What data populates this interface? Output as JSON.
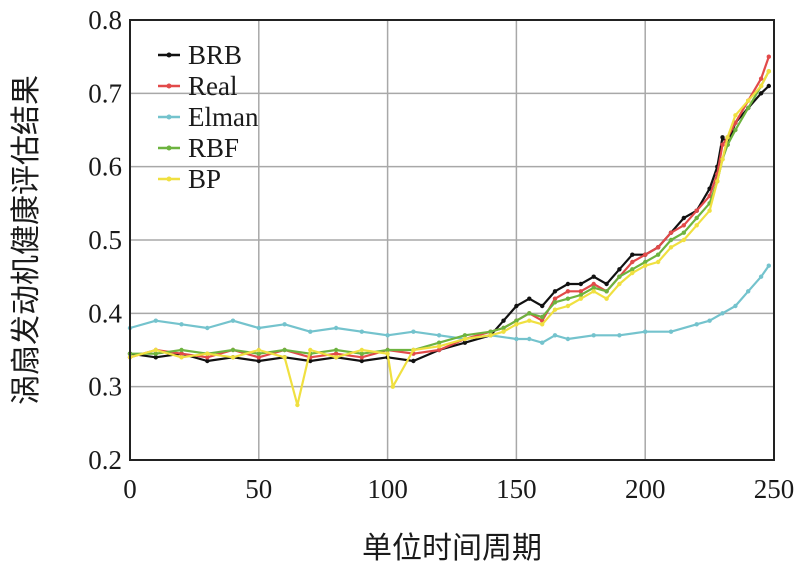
{
  "chart_data": {
    "type": "line",
    "xlabel": "单位时间周期",
    "ylabel": "涡扇发动机健康评估结果",
    "xlim": [
      0,
      250
    ],
    "ylim": [
      0.2,
      0.8
    ],
    "xticks": [
      0,
      50,
      100,
      150,
      200,
      250
    ],
    "yticks": [
      0.2,
      0.3,
      0.4,
      0.5,
      0.6,
      0.7,
      0.8
    ],
    "xtick_labels": [
      "0",
      "50",
      "100",
      "150",
      "200",
      "250"
    ],
    "ytick_labels": [
      "0.2",
      "0.3",
      "0.4",
      "0.5",
      "0.6",
      "0.7",
      "0.8"
    ],
    "grid": true,
    "legend_position": "top-left",
    "series": [
      {
        "name": "BRB",
        "color": "#111111",
        "x": [
          0,
          10,
          20,
          30,
          40,
          50,
          60,
          70,
          80,
          90,
          100,
          110,
          120,
          130,
          140,
          145,
          150,
          155,
          160,
          165,
          170,
          175,
          180,
          185,
          190,
          195,
          200,
          205,
          210,
          215,
          220,
          225,
          228,
          230,
          232,
          235,
          240,
          245,
          248
        ],
        "y": [
          0.345,
          0.34,
          0.345,
          0.335,
          0.34,
          0.335,
          0.34,
          0.335,
          0.34,
          0.335,
          0.34,
          0.335,
          0.35,
          0.36,
          0.37,
          0.39,
          0.41,
          0.42,
          0.41,
          0.43,
          0.44,
          0.44,
          0.45,
          0.44,
          0.46,
          0.48,
          0.48,
          0.49,
          0.51,
          0.53,
          0.54,
          0.57,
          0.6,
          0.64,
          0.63,
          0.66,
          0.68,
          0.7,
          0.71
        ]
      },
      {
        "name": "Real",
        "color": "#e24a4a",
        "x": [
          0,
          10,
          20,
          30,
          40,
          50,
          60,
          70,
          80,
          90,
          100,
          110,
          120,
          130,
          140,
          145,
          150,
          155,
          160,
          165,
          170,
          175,
          180,
          185,
          190,
          195,
          200,
          205,
          210,
          215,
          220,
          225,
          228,
          230,
          232,
          235,
          240,
          245,
          248
        ],
        "y": [
          0.34,
          0.35,
          0.345,
          0.34,
          0.35,
          0.34,
          0.35,
          0.34,
          0.345,
          0.34,
          0.35,
          0.345,
          0.35,
          0.365,
          0.375,
          0.38,
          0.39,
          0.4,
          0.39,
          0.42,
          0.43,
          0.43,
          0.44,
          0.43,
          0.45,
          0.47,
          0.48,
          0.49,
          0.51,
          0.52,
          0.54,
          0.56,
          0.59,
          0.63,
          0.64,
          0.66,
          0.69,
          0.72,
          0.75
        ]
      },
      {
        "name": "Elman",
        "color": "#74c3cd",
        "x": [
          0,
          10,
          20,
          30,
          40,
          50,
          60,
          70,
          80,
          90,
          100,
          110,
          120,
          130,
          140,
          150,
          155,
          160,
          165,
          170,
          180,
          190,
          200,
          210,
          220,
          225,
          230,
          235,
          240,
          245,
          248
        ],
        "y": [
          0.38,
          0.39,
          0.385,
          0.38,
          0.39,
          0.38,
          0.385,
          0.375,
          0.38,
          0.375,
          0.37,
          0.375,
          0.37,
          0.365,
          0.37,
          0.365,
          0.365,
          0.36,
          0.37,
          0.365,
          0.37,
          0.37,
          0.375,
          0.375,
          0.385,
          0.39,
          0.4,
          0.41,
          0.43,
          0.45,
          0.465
        ]
      },
      {
        "name": "RBF",
        "color": "#6db33f",
        "x": [
          0,
          10,
          20,
          30,
          40,
          50,
          60,
          70,
          80,
          90,
          100,
          110,
          120,
          130,
          140,
          145,
          150,
          155,
          160,
          165,
          170,
          175,
          180,
          185,
          190,
          195,
          200,
          205,
          210,
          215,
          220,
          225,
          228,
          230,
          232,
          235,
          240,
          245,
          248
        ],
        "y": [
          0.345,
          0.345,
          0.35,
          0.345,
          0.35,
          0.345,
          0.35,
          0.345,
          0.35,
          0.345,
          0.35,
          0.35,
          0.36,
          0.37,
          0.375,
          0.38,
          0.39,
          0.4,
          0.395,
          0.415,
          0.42,
          0.425,
          0.435,
          0.43,
          0.45,
          0.46,
          0.47,
          0.48,
          0.5,
          0.51,
          0.53,
          0.55,
          0.58,
          0.61,
          0.63,
          0.65,
          0.68,
          0.71,
          0.73
        ]
      },
      {
        "name": "BP",
        "color": "#f0e040",
        "x": [
          0,
          10,
          20,
          30,
          40,
          50,
          60,
          65,
          70,
          80,
          90,
          100,
          102,
          110,
          120,
          130,
          140,
          145,
          150,
          155,
          160,
          165,
          170,
          175,
          180,
          185,
          190,
          195,
          200,
          205,
          210,
          215,
          220,
          225,
          228,
          230,
          232,
          235,
          240,
          245,
          248
        ],
        "y": [
          0.34,
          0.35,
          0.34,
          0.345,
          0.34,
          0.35,
          0.34,
          0.275,
          0.35,
          0.34,
          0.35,
          0.345,
          0.3,
          0.35,
          0.355,
          0.365,
          0.37,
          0.375,
          0.385,
          0.39,
          0.385,
          0.405,
          0.41,
          0.42,
          0.43,
          0.42,
          0.44,
          0.455,
          0.465,
          0.47,
          0.49,
          0.5,
          0.52,
          0.54,
          0.58,
          0.61,
          0.64,
          0.67,
          0.69,
          0.71,
          0.73
        ]
      }
    ]
  }
}
